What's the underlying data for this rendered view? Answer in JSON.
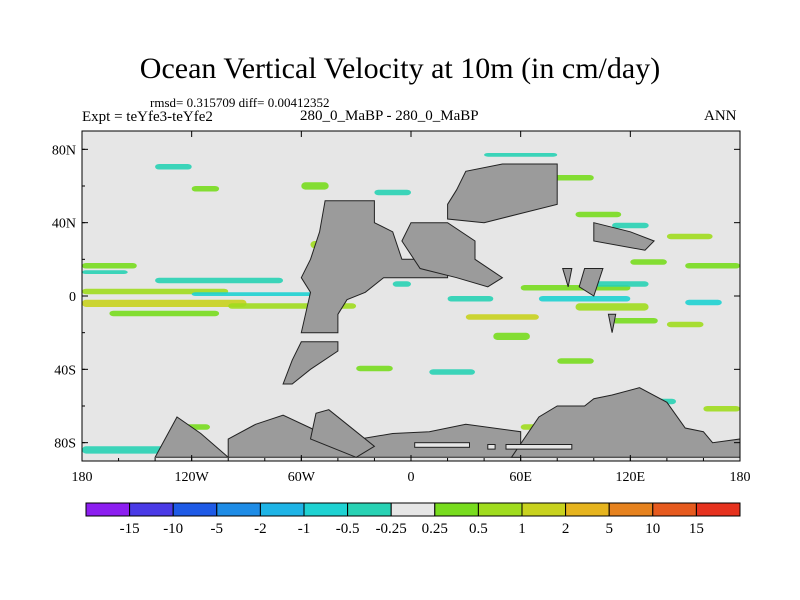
{
  "title": "Ocean Vertical Velocity at 10m (in cm/day)",
  "stats_label": "rmsd= 0.315709 diff= 0.00412352",
  "expt_label": "Expt = teYfe3-teYfe2",
  "center_label": "280_0_MaBP - 280_0_MaBP",
  "season_label": "ANN",
  "chart_data": {
    "type": "heatmap",
    "title": "Ocean Vertical Velocity at 10m (in cm/day)",
    "xlabel": "",
    "ylabel": "",
    "xlim": [
      -180,
      180
    ],
    "ylim": [
      -90,
      90
    ],
    "x_ticks": [
      -180,
      -120,
      -60,
      0,
      60,
      120,
      180
    ],
    "x_tick_labels": [
      "180",
      "120W",
      "60W",
      "0",
      "60E",
      "120E",
      "180"
    ],
    "y_ticks": [
      80,
      40,
      0,
      -40,
      -80
    ],
    "y_tick_labels": [
      "80N",
      "40N",
      "0",
      "40S",
      "80S"
    ],
    "colorbar": {
      "labels": [
        "-15",
        "-10",
        "-5",
        "-2",
        "-1",
        "-0.5",
        "-0.25",
        "0.25",
        "0.5",
        "1",
        "2",
        "5",
        "10",
        "15"
      ],
      "colors": [
        "#8c1ef0",
        "#4a3ae6",
        "#1e5ae6",
        "#1e8ce6",
        "#1eb4e6",
        "#1ed2d2",
        "#28d2b4",
        "#e6e6e6",
        "#78dc1e",
        "#a0dc1e",
        "#c8d21e",
        "#e6b41e",
        "#e6821e",
        "#e65a1e",
        "#e6321e"
      ]
    },
    "land_color": "#9b9b9b",
    "ocean_color": "#e6e6e6"
  }
}
